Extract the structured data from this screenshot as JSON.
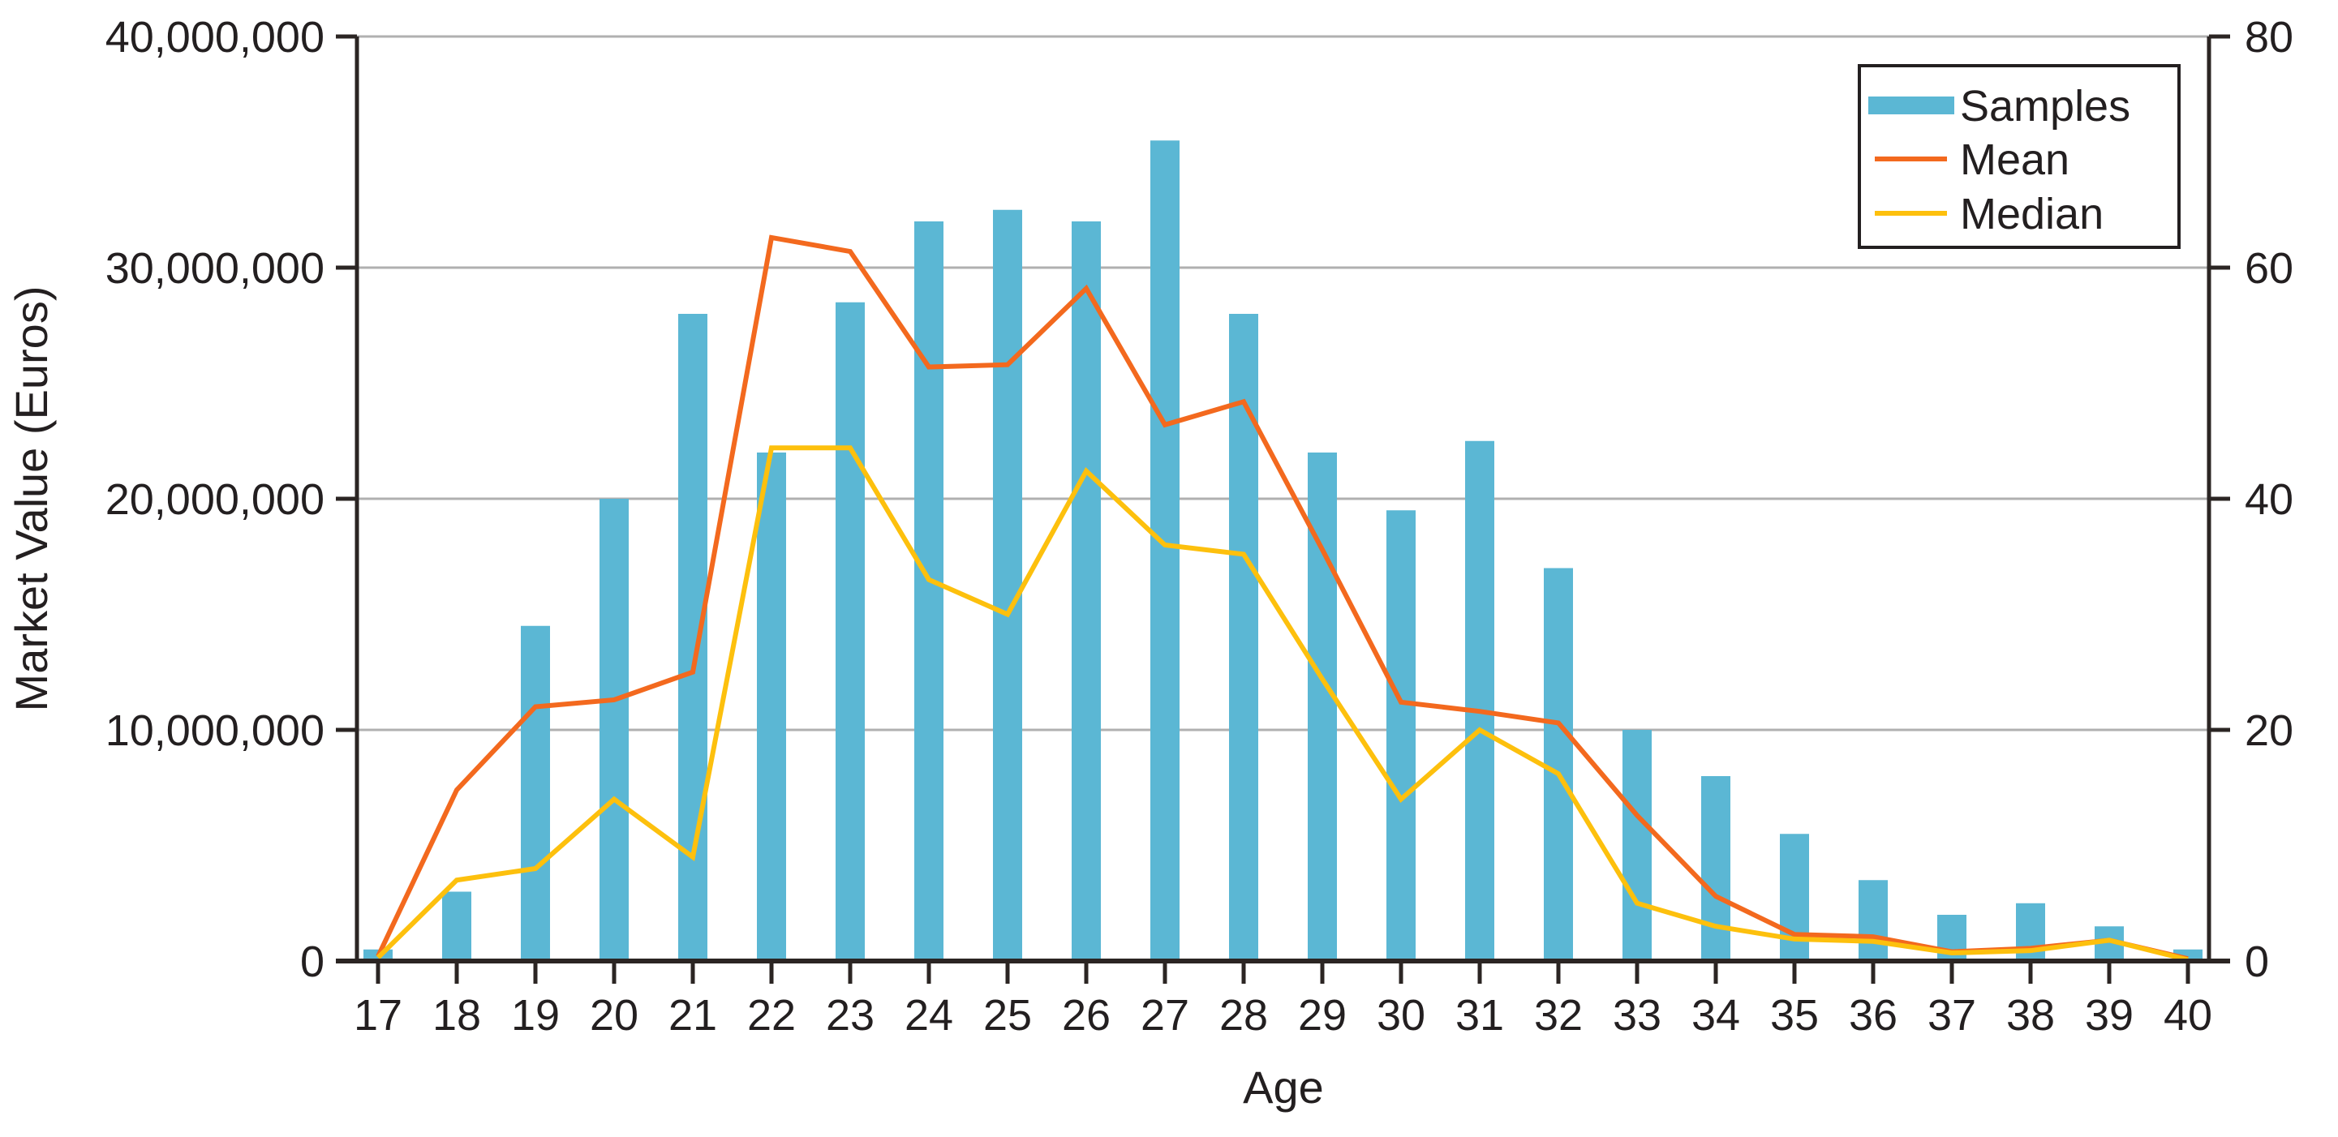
{
  "chart_data": {
    "type": "bar",
    "combo_types": [
      "bar",
      "line",
      "line"
    ],
    "title": "",
    "xlabel": "Age",
    "ylabel_left": "Market Value (Euros)",
    "ylabel_right": "",
    "categories": [
      17,
      18,
      19,
      20,
      21,
      22,
      23,
      24,
      25,
      26,
      27,
      28,
      29,
      30,
      31,
      32,
      33,
      34,
      35,
      36,
      37,
      38,
      39,
      40
    ],
    "series": [
      {
        "name": "Samples",
        "type": "bar",
        "axis": "right",
        "color": "#5BB7D4",
        "values": [
          1,
          6,
          29,
          40,
          56,
          44,
          57,
          64,
          65,
          64,
          71,
          56,
          44,
          39,
          45,
          34,
          20,
          16,
          11,
          7,
          4,
          5,
          3,
          1
        ]
      },
      {
        "name": "Mean",
        "type": "line",
        "axis": "left",
        "color": "#F3691E",
        "values": [
          200000,
          7400000,
          11000000,
          11300000,
          12500000,
          31300000,
          30700000,
          25700000,
          25800000,
          29100000,
          23200000,
          24200000,
          17800000,
          11200000,
          10800000,
          10300000,
          6300000,
          2800000,
          1150000,
          1050000,
          400000,
          550000,
          900000,
          100000
        ]
      },
      {
        "name": "Median",
        "type": "line",
        "axis": "left",
        "color": "#FDC00D",
        "values": [
          150000,
          3500000,
          4000000,
          7000000,
          4500000,
          22200000,
          22200000,
          16500000,
          15000000,
          21200000,
          18000000,
          17600000,
          12200000,
          7000000,
          10000000,
          8100000,
          2500000,
          1500000,
          950000,
          850000,
          350000,
          450000,
          900000,
          50000
        ]
      }
    ],
    "left_axis": {
      "min": 0,
      "max": 40000000,
      "tick_labels": [
        "0",
        "10,000,000",
        "20,000,000",
        "30,000,000",
        "40,000,000"
      ]
    },
    "right_axis": {
      "min": 0,
      "max": 80,
      "tick_labels": [
        "0",
        "20",
        "40",
        "60",
        "80"
      ]
    },
    "grid": "horizontal",
    "legend_position": "top-right",
    "legend_entries": [
      "Samples",
      "Mean",
      "Median"
    ]
  },
  "colors": {
    "bar_blue": "#5BB7D4",
    "mean_orange": "#F3691E",
    "median_yellow": "#FDC00D",
    "gridline_gray": "#B0B0B0",
    "axis_dark": "#2B2523",
    "text_dark": "#231F20",
    "background": "#FFFFFF"
  }
}
